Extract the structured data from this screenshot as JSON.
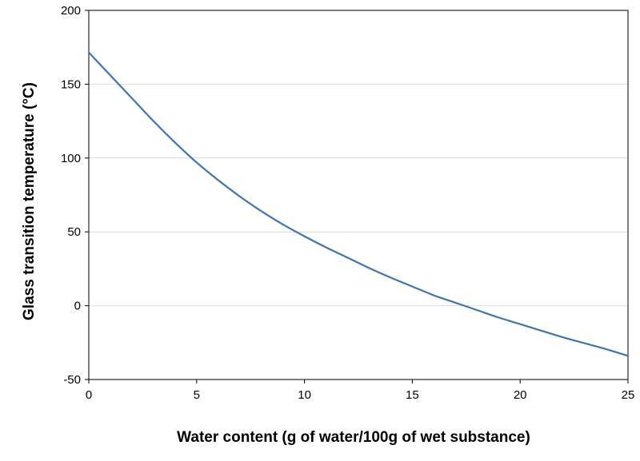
{
  "chart_data": {
    "type": "line",
    "title": "",
    "xlabel": "Water content (g of water/100g of wet substance)",
    "ylabel": "Glass transition temperature (°C)",
    "xlim": [
      0,
      25
    ],
    "ylim": [
      -50,
      200
    ],
    "x_ticks": [
      0,
      5,
      10,
      15,
      20,
      25
    ],
    "y_ticks": [
      -50,
      0,
      50,
      100,
      150,
      200
    ],
    "x_tick_labels": [
      "0",
      "5",
      "10",
      "15",
      "20",
      "25"
    ],
    "y_tick_labels": [
      "-50",
      "0",
      "50",
      "100",
      "150",
      "200"
    ],
    "grid": "horizontal",
    "legend": "none",
    "series": [
      {
        "name": "Glass transition temperature",
        "color": "#3a75b8",
        "x": [
          0,
          1,
          2,
          3,
          4,
          5,
          6,
          7,
          8,
          9,
          10,
          11,
          12,
          13,
          14,
          15,
          16,
          17,
          18,
          19,
          20,
          21,
          22,
          23,
          24,
          25
        ],
        "y": [
          171.5,
          156,
          140.5,
          125,
          110.5,
          97,
          85,
          74,
          64,
          55,
          47,
          39.5,
          32.5,
          25.5,
          19,
          13,
          7,
          2,
          -3,
          -8,
          -12.5,
          -17,
          -21.5,
          -25.5,
          -29.5,
          -34
        ]
      }
    ]
  }
}
